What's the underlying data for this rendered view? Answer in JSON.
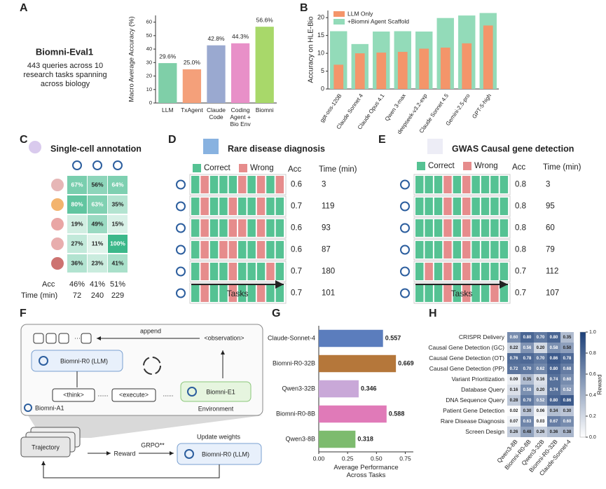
{
  "panel_labels": [
    "A",
    "B",
    "C",
    "D",
    "E",
    "F",
    "G",
    "H"
  ],
  "chart_data": [
    {
      "type": "bar",
      "y_label": "Macro Average Accuracy (%)",
      "side_title": "Biomni-Eval1",
      "side_text": "443 queries across 10 research tasks spanning across biology",
      "categories": [
        "LLM",
        "TxAgent",
        "Claude Code",
        "Coding Agent + Bio Env",
        "Biomni"
      ],
      "values": [
        29.6,
        25.0,
        42.8,
        44.3,
        56.6
      ],
      "value_labels": [
        "29.6%",
        "25.0%",
        "42.8%",
        "44.3%",
        "56.6%"
      ],
      "colors": [
        "#7fcfa8",
        "#f4a07a",
        "#9aa9d0",
        "#e890c8",
        "#a8d86a"
      ],
      "ylim": [
        0,
        65
      ],
      "yticks": [
        0,
        10,
        20,
        30,
        40,
        50,
        60
      ]
    },
    {
      "type": "overlap_bar",
      "y_label": "Accuracy on HLE-Bio",
      "categories": [
        "gpt-oss-120B",
        "Claude Sonnet 4",
        "Claude Opus 4.1",
        "Qwen 3-max",
        "deepseek-v3.2-exp",
        "Claude Sonnet 4.5",
        "Gemini-2.5-pro",
        "GPT-5-high"
      ],
      "series": [
        {
          "name": "LLM Only",
          "color": "#f4956a",
          "values": [
            6.8,
            10.0,
            10.2,
            10.4,
            11.3,
            11.6,
            12.8,
            17.8
          ]
        },
        {
          "name": "+Biomni Agent Scaffold",
          "color": "#93dbb9",
          "values": [
            16.2,
            12.6,
            16.1,
            16.2,
            16.1,
            19.9,
            20.6,
            21.3
          ]
        }
      ],
      "ylim": [
        0,
        22
      ],
      "yticks": [
        0,
        5,
        10,
        15,
        20
      ],
      "legend": "upper left"
    },
    {
      "type": "hbar",
      "x_label": "Average Performance Across Tasks",
      "categories": [
        "Claude-Sonnet-4",
        "Biomni-R0-32B",
        "Qwen3-32B",
        "Biomni-R0-8B",
        "Qwen3-8B"
      ],
      "values": [
        0.557,
        0.669,
        0.346,
        0.588,
        0.318
      ],
      "colors": [
        "#5b7dbd",
        "#b5773a",
        "#c9a8d8",
        "#e07ab8",
        "#7dbb6e"
      ],
      "xlim": [
        0,
        0.82
      ],
      "xticks": [
        {
          "value": 0,
          "label": "0.00"
        },
        0.25,
        {
          "value": 0.5,
          "label": "0.50"
        },
        0.75
      ]
    },
    {
      "type": "heatmap",
      "colorbar_label": "Reward",
      "rows": [
        "CRISPR Delivery",
        "Causal Gene Detection (GC)",
        "Causal Gene Detection (OT)",
        "Causal Gene Detection (PP)",
        "Variant Prioritization",
        "Database Query",
        "DNA Sequence Query",
        "Patient Gene Detection",
        "Rare Disease Diagnosis",
        "Screen Design"
      ],
      "columns": [
        "Qwen3-8B",
        "Biomni-R0-8B",
        "Qwen3-32B",
        "Biomni-R0-32B",
        "Claude-Sonnet-4"
      ],
      "values": [
        [
          0.6,
          0.8,
          0.7,
          0.8,
          0.35
        ],
        [
          0.22,
          0.56,
          0.2,
          0.58,
          0.5
        ],
        [
          0.76,
          0.78,
          0.7,
          0.86,
          0.78
        ],
        [
          0.72,
          0.7,
          0.62,
          0.8,
          0.68
        ],
        [
          0.09,
          0.35,
          0.16,
          0.74,
          0.6
        ],
        [
          0.16,
          0.58,
          0.2,
          0.74,
          0.52
        ],
        [
          0.28,
          0.7,
          0.52,
          0.8,
          0.86
        ],
        [
          0.02,
          0.3,
          0.06,
          0.34,
          0.3
        ],
        [
          0.07,
          0.63,
          0.03,
          0.67,
          0.6
        ],
        [
          0.26,
          0.48,
          0.26,
          0.36,
          0.38
        ]
      ],
      "value_labels": [
        [
          "0.60",
          "0.80",
          "0.70",
          "0.80",
          "0.35"
        ],
        [
          "0.22",
          "0.56",
          "0.20",
          "0.58",
          "0.50"
        ],
        [
          "0.76",
          "0.78",
          "0.70",
          "0.86",
          "0.78"
        ],
        [
          "0.72",
          "0.70",
          "0.62",
          "0.80",
          "0.68"
        ],
        [
          "0.09",
          "0.35",
          "0.16",
          "0.74",
          "0.60"
        ],
        [
          "0.16",
          "0.58",
          "0.20",
          "0.74",
          "0.52"
        ],
        [
          "0.28",
          "0.70",
          "0.52",
          "0.80",
          "0.86"
        ],
        [
          "0.02",
          "0.30",
          "0.06",
          "0.34",
          "0.30"
        ],
        [
          "0.07",
          "0.63",
          "0.03",
          "0.67",
          "0.60"
        ],
        [
          "0.26",
          "0.48",
          "0.26",
          "0.36",
          "0.38"
        ]
      ],
      "clim": [
        0,
        1
      ],
      "cticks": [
        {
          "value": 0,
          "label": "0.0"
        },
        {
          "value": 0.2,
          "label": "0.2"
        },
        {
          "value": 0.4,
          "label": "0.4"
        },
        {
          "value": 0.6,
          "label": "0.6"
        },
        {
          "value": 0.8,
          "label": "0.8"
        },
        {
          "value": 1,
          "label": "1.0"
        }
      ]
    }
  ],
  "single_cell": {
    "title": "Single-cell annotation",
    "values": [
      [
        67,
        56,
        64
      ],
      [
        80,
        63,
        35
      ],
      [
        19,
        49,
        15
      ],
      [
        27,
        11,
        100
      ],
      [
        36,
        23,
        41
      ]
    ],
    "value_labels": [
      [
        "67%",
        "56%",
        "64%"
      ],
      [
        "80%",
        "63%",
        "35%"
      ],
      [
        "19%",
        "49%",
        "15%"
      ],
      [
        "27%",
        "11%",
        "100%"
      ],
      [
        "36%",
        "23%",
        "41%"
      ]
    ],
    "acc_label": "Acc",
    "acc": [
      46,
      41,
      51
    ],
    "acc_labels": [
      "46%",
      "41%",
      "51%"
    ],
    "time_label": "Time (min)",
    "time": [
      72,
      240,
      229
    ]
  },
  "rare_disease": {
    "title": "Rare disease diagnosis",
    "legend": [
      "Correct",
      "Wrong"
    ],
    "colors": [
      "#55c293",
      "#e68c8c"
    ],
    "acc_label": "Acc",
    "time_label": "Time (min)",
    "x_label": "Tasks",
    "rows": [
      {
        "acc": 0.6,
        "time": 3,
        "results": [
          1,
          0,
          1,
          1,
          1,
          0,
          1,
          0,
          1,
          0
        ]
      },
      {
        "acc": 0.7,
        "time": 119,
        "results": [
          1,
          0,
          1,
          1,
          0,
          1,
          1,
          0,
          1,
          1
        ]
      },
      {
        "acc": 0.6,
        "time": 93,
        "results": [
          1,
          0,
          1,
          1,
          0,
          0,
          1,
          0,
          1,
          1
        ]
      },
      {
        "acc": 0.6,
        "time": 87,
        "results": [
          1,
          0,
          1,
          0,
          0,
          1,
          1,
          0,
          1,
          1
        ]
      },
      {
        "acc": 0.7,
        "time": 180,
        "results": [
          1,
          0,
          1,
          1,
          0,
          1,
          1,
          1,
          0,
          1
        ]
      },
      {
        "acc": 0.7,
        "time": 101,
        "results": [
          1,
          0,
          1,
          1,
          0,
          1,
          1,
          0,
          1,
          1
        ]
      }
    ]
  },
  "gwas": {
    "title": "GWAS Causal gene detection",
    "legend": [
      "Correct",
      "Wrong"
    ],
    "colors": [
      "#55c293",
      "#e68c8c"
    ],
    "acc_label": "Acc",
    "time_label": "Time (min)",
    "x_label": "Tasks",
    "rows": [
      {
        "acc": 0.8,
        "time": 3,
        "results": [
          1,
          1,
          1,
          0,
          1,
          0,
          1,
          1,
          1,
          1
        ]
      },
      {
        "acc": 0.8,
        "time": 95,
        "results": [
          1,
          1,
          1,
          0,
          1,
          0,
          1,
          1,
          1,
          1
        ]
      },
      {
        "acc": 0.8,
        "time": 60,
        "results": [
          1,
          1,
          1,
          0,
          1,
          0,
          1,
          1,
          1,
          1
        ]
      },
      {
        "acc": 0.8,
        "time": 79,
        "results": [
          1,
          1,
          1,
          0,
          1,
          0,
          1,
          1,
          1,
          1
        ]
      },
      {
        "acc": 0.7,
        "time": 112,
        "results": [
          1,
          0,
          1,
          0,
          1,
          0,
          1,
          1,
          1,
          1
        ]
      },
      {
        "acc": 0.7,
        "time": 107,
        "results": [
          1,
          1,
          1,
          0,
          1,
          0,
          1,
          1,
          0,
          1
        ]
      }
    ]
  },
  "diagram": {
    "append": "append",
    "observation": "<observation>",
    "agent_model": "Biomni-R0 (LLM)",
    "think": "<think>",
    "dots": "......",
    "execute": "<execute>",
    "env_name": "Biomni-E1",
    "environment": "Environment",
    "system": "Biomni-A1",
    "trajectory": "Trajectory",
    "reward": "Reward",
    "grpo": "GRPO**",
    "update": "Update weights",
    "trained_model": "Biomni-R0 (LLM)"
  }
}
